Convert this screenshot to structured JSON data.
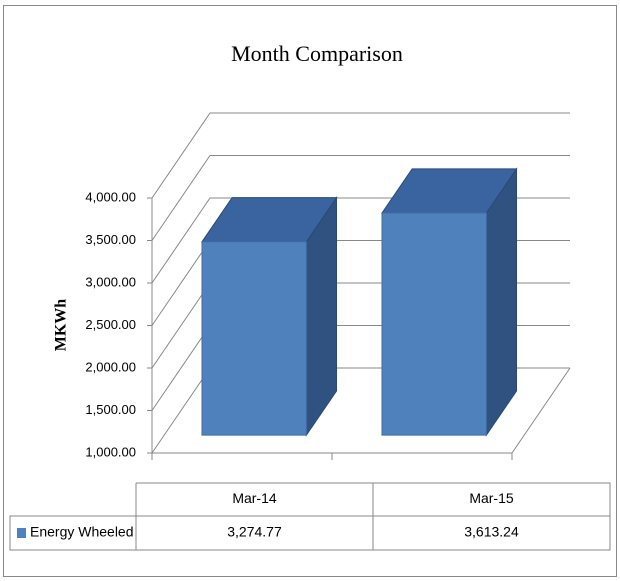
{
  "chart_data": {
    "type": "bar3d",
    "title": "Month Comparison",
    "y_label": "MKWh",
    "categories": [
      "Mar-14",
      "Mar-15"
    ],
    "series": [
      {
        "name": "Energy Wheeled",
        "color": "#4f81bd",
        "values": [
          3274.77,
          3613.24
        ],
        "value_labels": [
          "3,274.77",
          "3,613.24"
        ]
      }
    ],
    "ylim": [
      1000,
      4000
    ],
    "yticks": [
      {
        "value": 1000,
        "label": "1,000.00"
      },
      {
        "value": 1500,
        "label": "1,500.00"
      },
      {
        "value": 2000,
        "label": "2,000.00"
      },
      {
        "value": 2500,
        "label": "2,500.00"
      },
      {
        "value": 3000,
        "label": "3,000.00"
      },
      {
        "value": 3500,
        "label": "3,500.00"
      },
      {
        "value": 4000,
        "label": "4,000.00"
      }
    ],
    "grid": true,
    "data_table": true
  }
}
